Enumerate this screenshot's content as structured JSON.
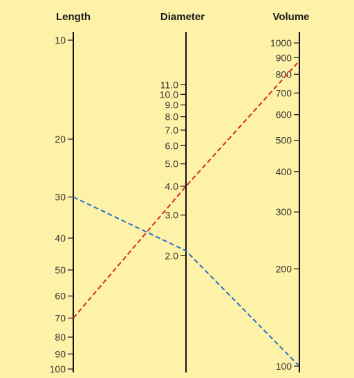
{
  "scales": [
    {
      "id": "length",
      "title": "Length",
      "ticks": [
        {
          "label": "10",
          "value": 10
        },
        {
          "label": "20",
          "value": 20
        },
        {
          "label": "30",
          "value": 30
        },
        {
          "label": "40",
          "value": 40
        },
        {
          "label": "50",
          "value": 50
        },
        {
          "label": "60",
          "value": 60
        },
        {
          "label": "70",
          "value": 70
        },
        {
          "label": "80",
          "value": 80
        },
        {
          "label": "90",
          "value": 90
        },
        {
          "label": "100",
          "value": 100
        }
      ]
    },
    {
      "id": "diameter",
      "title": "Diameter",
      "ticks": [
        {
          "label": "11.0",
          "value": 11.0
        },
        {
          "label": "10.0",
          "value": 10.0
        },
        {
          "label": "9.0",
          "value": 9.0
        },
        {
          "label": "8.0",
          "value": 8.0
        },
        {
          "label": "7.0",
          "value": 7.0
        },
        {
          "label": "6.0",
          "value": 6.0
        },
        {
          "label": "5.0",
          "value": 5.0
        },
        {
          "label": "4.0",
          "value": 4.0
        },
        {
          "label": "3.0",
          "value": 3.0
        },
        {
          "label": "2.0",
          "value": 2.0
        }
      ]
    },
    {
      "id": "volume",
      "title": "Volume",
      "ticks": [
        {
          "label": "1000",
          "value": 1000
        },
        {
          "label": "900",
          "value": 900
        },
        {
          "label": "800",
          "value": 800
        },
        {
          "label": "700",
          "value": 700
        },
        {
          "label": "600",
          "value": 600
        },
        {
          "label": "500",
          "value": 500
        },
        {
          "label": "400",
          "value": 400
        },
        {
          "label": "300",
          "value": 300
        },
        {
          "label": "200",
          "value": 200
        },
        {
          "label": "100",
          "value": 100
        }
      ]
    }
  ],
  "isopleths": [
    {
      "name": "red",
      "color": "#d42a2a",
      "length": 70,
      "diameter": 4.0,
      "volume": 880
    },
    {
      "name": "blue",
      "color": "#2a6fc9",
      "length": 30,
      "diameter": 2.1,
      "volume": 100
    }
  ],
  "colors": {
    "background": "#fdf2a8",
    "axis": "#111111"
  }
}
